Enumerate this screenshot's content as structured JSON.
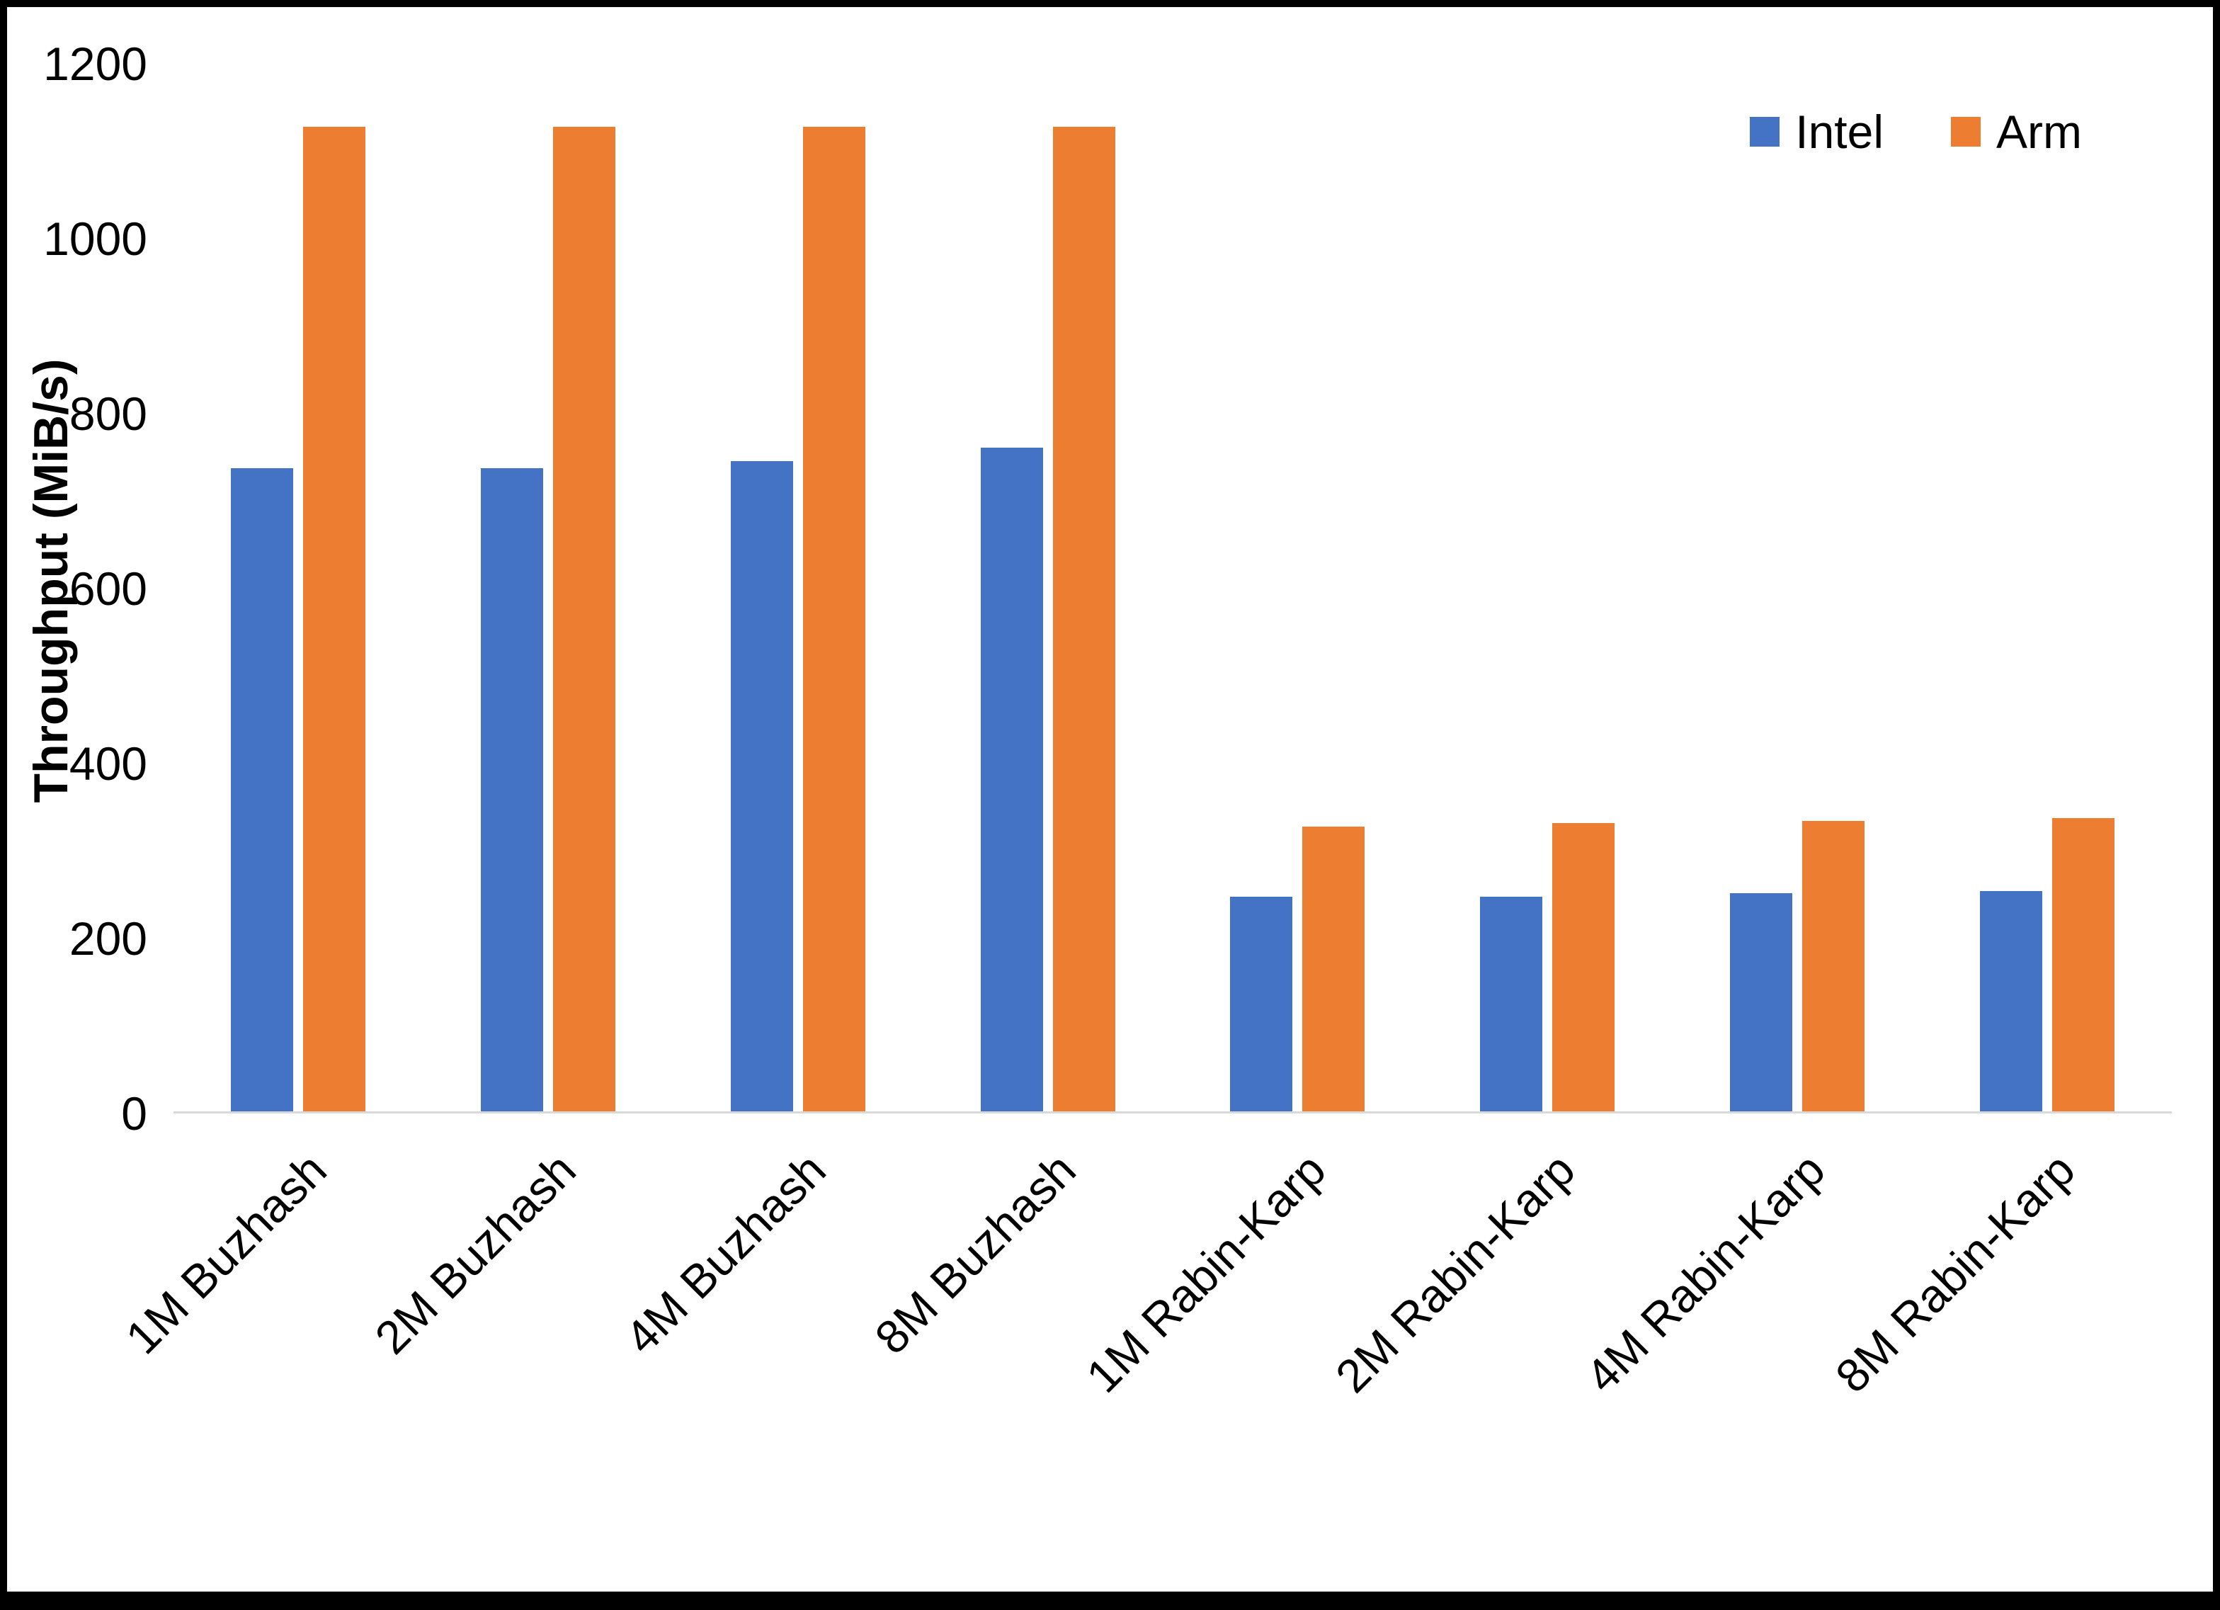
{
  "chart_data": {
    "type": "bar",
    "title": "",
    "xlabel": "",
    "ylabel": "Throughput (MiB/s)",
    "categories": [
      "1M Buzhash",
      "2M Buzhash",
      "4M Buzhash",
      "8M Buzhash",
      "1M Rabin-Karp",
      "2M Rabin-Karp",
      "4M Rabin-Karp",
      "8M Rabin-Karp"
    ],
    "series": [
      {
        "name": "Intel",
        "color": "#4472C4",
        "values": [
          737,
          737,
          745,
          760,
          246,
          246,
          250,
          252
        ]
      },
      {
        "name": "Arm",
        "color": "#ED7D31",
        "values": [
          1128,
          1128,
          1128,
          1128,
          326,
          330,
          333,
          336
        ]
      }
    ],
    "ylim": [
      0,
      1200
    ],
    "yticks": [
      0,
      200,
      400,
      600,
      800,
      1000,
      1200
    ],
    "grid": false,
    "legend_position": "top-right",
    "colors": {
      "axis_line": "#D9D9D9",
      "text": "#000000",
      "frame": "#000000"
    }
  }
}
